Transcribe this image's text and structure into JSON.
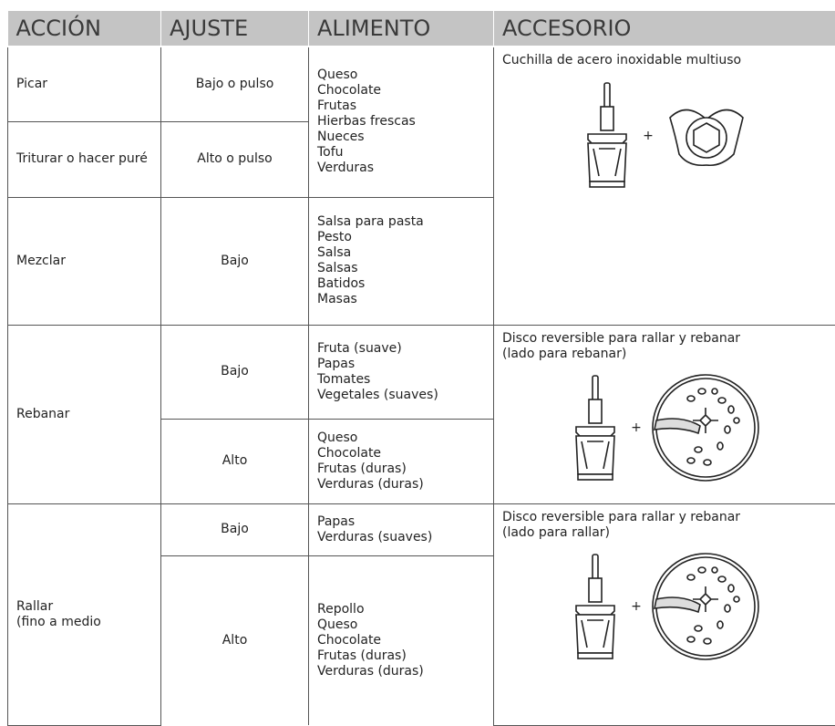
{
  "table": {
    "headers": [
      "ACCIÓN",
      "AJUSTE",
      "ALIMENTO",
      "ACCESORIO"
    ],
    "rows": [
      {
        "action": [
          "Picar"
        ],
        "setting": "Bajo o pulso",
        "foods": [
          "Queso",
          "Chocolate",
          "Frutas",
          "Hierbas frescas",
          "Nueces",
          "Tofu",
          "Verduras"
        ],
        "accessory": {
          "lines": [
            "Cuchilla de acero inoxidable multiuso"
          ],
          "plus": "+"
        }
      },
      {
        "action": [
          "Triturar o hacer puré"
        ],
        "setting": "Alto o pulso"
      },
      {
        "action": [
          "Mezclar"
        ],
        "setting": "Bajo",
        "foods": [
          "Salsa para pasta",
          "Pesto",
          "Salsa",
          "Salsas",
          "Batidos",
          "Masas"
        ]
      },
      {
        "action": [
          "Rebanar"
        ],
        "setting": "Bajo",
        "foods": [
          "Fruta (suave)",
          "Papas",
          "Tomates",
          "Vegetales (suaves)"
        ],
        "accessory": {
          "lines": [
            "Disco reversible para rallar y rebanar",
            "(lado para rebanar)"
          ],
          "plus": "+"
        }
      },
      {
        "setting": "Alto",
        "foods": [
          "Queso",
          "Chocolate",
          "Frutas (duras)",
          "Verduras (duras)"
        ]
      },
      {
        "action": [
          "Rallar",
          "(fino a medio"
        ],
        "setting": "Bajo",
        "foods": [
          "Papas",
          "Verduras (suaves)"
        ],
        "accessory": {
          "lines": [
            "Disco reversible para rallar y rebanar",
            "(lado para rallar)"
          ],
          "plus": "+"
        }
      },
      {
        "setting": "Alto",
        "foods": [
          "Repollo",
          "Queso",
          "Chocolate",
          "Frutas (duras)",
          "Verduras (duras)"
        ]
      }
    ]
  }
}
